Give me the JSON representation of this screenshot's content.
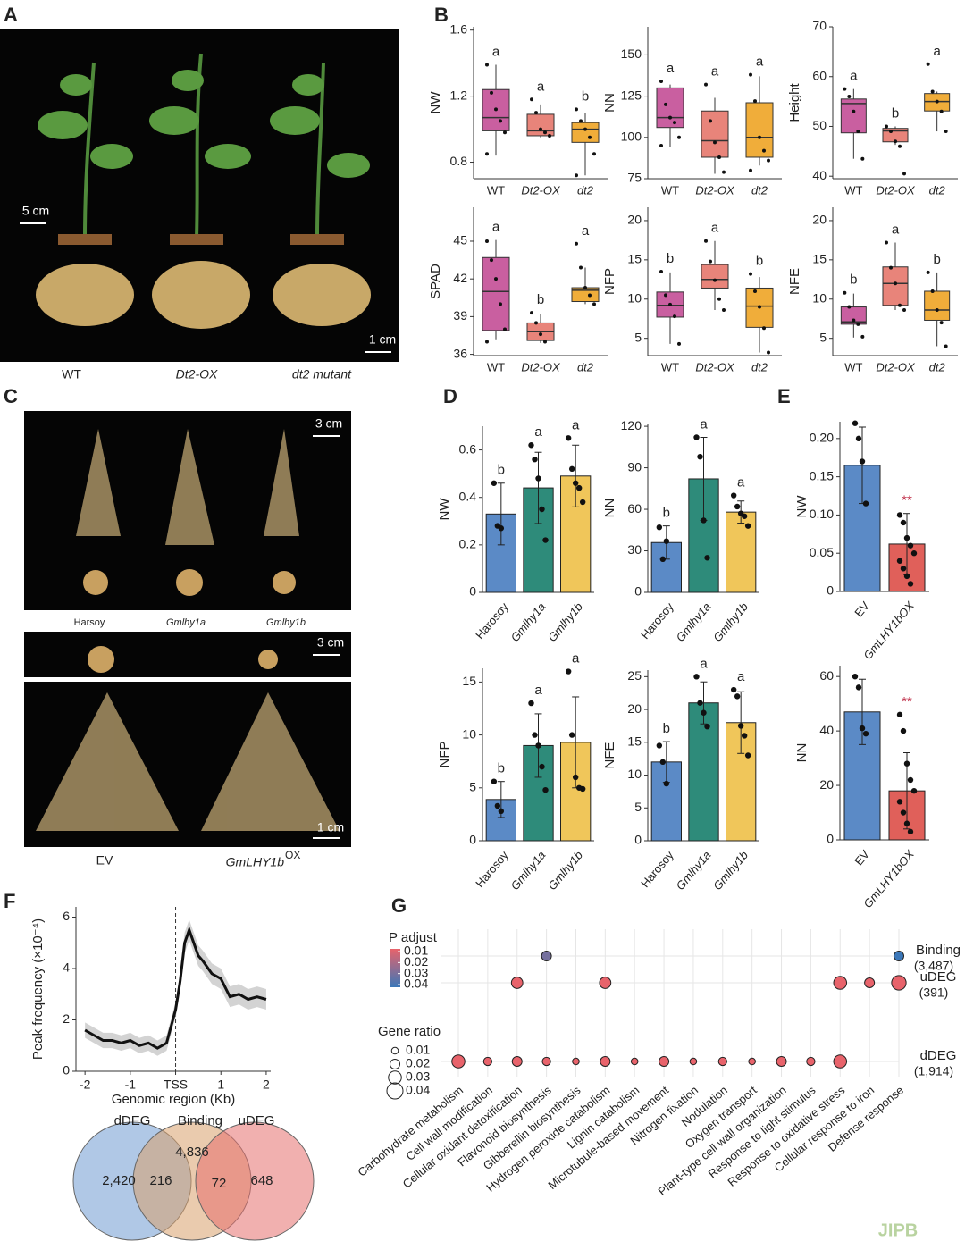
{
  "panel_labels": [
    "A",
    "B",
    "C",
    "D",
    "E",
    "F",
    "G"
  ],
  "photo_a": {
    "labels": [
      "WT",
      "Dt2-OX",
      "dt2 mutant"
    ],
    "scale_bars": [
      "5 cm",
      "1 cm"
    ]
  },
  "photo_c": {
    "labels": [
      "Harsoy",
      "Gmlhy1a",
      "Gmlhy1b"
    ],
    "scale_bars": [
      "3 cm",
      "3 cm",
      "1 cm"
    ],
    "labels_bottom": [
      "EV",
      "GmLHY1b",
      "OX"
    ]
  },
  "watermark": "JIPB",
  "chart_data": [
    {
      "type": "box",
      "ylabel": "NW",
      "categories": [
        "WT",
        "Dt2-OX",
        "dt2"
      ],
      "colors": [
        "#c95fa0",
        "#e8847a",
        "#f0ad3a"
      ],
      "min": [
        0.84,
        0.95,
        0.72
      ],
      "q1": [
        0.99,
        0.96,
        0.92
      ],
      "median": [
        1.07,
        0.99,
        1.0
      ],
      "q3": [
        1.24,
        1.09,
        1.04
      ],
      "max": [
        1.39,
        1.15,
        1.1
      ],
      "points": [
        [
          1.39,
          1.22,
          1.12,
          1.05,
          0.98,
          0.85
        ],
        [
          1.18,
          1.1,
          1.0,
          0.98,
          0.96
        ],
        [
          1.12,
          1.05,
          1.0,
          0.95,
          0.85,
          0.72
        ]
      ],
      "letters": [
        "a",
        "a",
        "b"
      ],
      "ylim": [
        0.7,
        1.62
      ],
      "yticks": [
        0.8,
        1.2,
        1.6
      ]
    },
    {
      "type": "box",
      "ylabel": "NN",
      "categories": [
        "WT",
        "Dt2-OX",
        "dt2"
      ],
      "colors": [
        "#c95fa0",
        "#e8847a",
        "#f0ad3a"
      ],
      "min": [
        94,
        78,
        83
      ],
      "q1": [
        106,
        88,
        88
      ],
      "median": [
        112,
        98,
        100
      ],
      "q3": [
        130,
        116,
        121
      ],
      "max": [
        132,
        124,
        137
      ],
      "points": [
        [
          134,
          120,
          112,
          109,
          100,
          95
        ],
        [
          132,
          110,
          97,
          88,
          79
        ],
        [
          138,
          122,
          100,
          92,
          86,
          80
        ]
      ],
      "letters": [
        "a",
        "a",
        "a"
      ],
      "ylim": [
        75,
        167
      ],
      "yticks": [
        75,
        100,
        125,
        150
      ]
    },
    {
      "type": "box",
      "ylabel": "Height",
      "categories": [
        "WT",
        "Dt2-OX",
        "dt2"
      ],
      "colors": [
        "#c95fa0",
        "#e8847a",
        "#f0ad3a"
      ],
      "min": [
        43.5,
        46.3,
        49
      ],
      "q1": [
        48.7,
        46.9,
        53.1
      ],
      "median": [
        54.6,
        49.1,
        55
      ],
      "q3": [
        55.5,
        49.6,
        56.6
      ],
      "max": [
        57.5,
        50,
        57
      ],
      "points": [
        [
          57.5,
          56,
          53,
          49,
          43.5
        ],
        [
          50,
          49,
          47,
          46,
          40.5
        ],
        [
          62.5,
          57,
          55,
          53,
          49
        ]
      ],
      "letters": [
        "a",
        "b",
        "a"
      ],
      "ylim": [
        39.5,
        70
      ],
      "yticks": [
        40,
        50,
        60,
        70
      ]
    },
    {
      "type": "box",
      "ylabel": "SPAD",
      "categories": [
        "WT",
        "Dt2-OX",
        "dt2"
      ],
      "colors": [
        "#c95fa0",
        "#e8847a",
        "#f0ad3a"
      ],
      "min": [
        37.2,
        36.9,
        40
      ],
      "q1": [
        37.9,
        37.1,
        40.2
      ],
      "median": [
        41,
        37.8,
        41.1
      ],
      "q3": [
        43.7,
        38.5,
        41.3
      ],
      "max": [
        45.1,
        39.2,
        42.9
      ],
      "points": [
        [
          45,
          43.5,
          42,
          40,
          38,
          37
        ],
        [
          39.3,
          38.5,
          37.6,
          37
        ],
        [
          44.8,
          42.9,
          41.3,
          40.7,
          40
        ]
      ],
      "letters": [
        "a",
        "b",
        "a"
      ],
      "ylim": [
        35.9,
        47.7
      ],
      "yticks": [
        36,
        39,
        42,
        45
      ]
    },
    {
      "type": "box",
      "ylabel": "NFP",
      "categories": [
        "WT",
        "Dt2-OX",
        "dt2"
      ],
      "colors": [
        "#c95fa0",
        "#e8847a",
        "#f0ad3a"
      ],
      "min": [
        4.3,
        8.6,
        3.2
      ],
      "q1": [
        7.7,
        11.4,
        6.4
      ],
      "median": [
        9.2,
        12.5,
        9.1
      ],
      "q3": [
        10.9,
        14.4,
        11.4
      ],
      "max": [
        13.4,
        17.4,
        12.8
      ],
      "points": [
        [
          13.5,
          10.5,
          9.3,
          7.8,
          4.3
        ],
        [
          17.4,
          14.8,
          12.4,
          10,
          8.6
        ],
        [
          13.2,
          11,
          9,
          6.3,
          3.2
        ]
      ],
      "letters": [
        "b",
        "a",
        "b"
      ],
      "ylim": [
        2.8,
        21.7
      ],
      "yticks": [
        5,
        10,
        15,
        20
      ]
    },
    {
      "type": "box",
      "ylabel": "NFE",
      "categories": [
        "WT",
        "Dt2-OX",
        "dt2"
      ],
      "colors": [
        "#c95fa0",
        "#e8847a",
        "#f0ad3a"
      ],
      "min": [
        5.1,
        8.6,
        4
      ],
      "q1": [
        6.8,
        9.2,
        7.3
      ],
      "median": [
        7.1,
        12,
        8.6
      ],
      "q3": [
        9,
        14.1,
        11
      ],
      "max": [
        10.7,
        17.2,
        13.4
      ],
      "points": [
        [
          10.8,
          9,
          7.3,
          6.8,
          5.2
        ],
        [
          17.2,
          14,
          12,
          9.2,
          8.6
        ],
        [
          13.4,
          11,
          8.6,
          7,
          4
        ]
      ],
      "letters": [
        "b",
        "a",
        "b"
      ],
      "ylim": [
        2.8,
        21.7
      ],
      "yticks": [
        5,
        10,
        15,
        20
      ]
    },
    {
      "type": "bar",
      "ylabel": "NW",
      "categories": [
        "Harosoy",
        "Gmlhy1a",
        "Gmlhy1b"
      ],
      "colors": [
        "#5b8ac6",
        "#2e8b7a",
        "#f0c65a"
      ],
      "values": [
        0.33,
        0.44,
        0.49
      ],
      "errors": [
        0.13,
        0.15,
        0.13
      ],
      "points": [
        [
          0.46,
          0.28,
          0.27
        ],
        [
          0.62,
          0.56,
          0.48,
          0.35,
          0.22
        ],
        [
          0.65,
          0.52,
          0.46,
          0.44,
          0.38
        ]
      ],
      "letters": [
        "b",
        "a",
        "a"
      ],
      "ylim": [
        0,
        0.7
      ],
      "yticks": [
        0,
        0.2,
        0.4,
        0.6
      ]
    },
    {
      "type": "bar",
      "ylabel": "NN",
      "categories": [
        "Harosoy",
        "Gmlhy1a",
        "Gmlhy1b"
      ],
      "colors": [
        "#5b8ac6",
        "#2e8b7a",
        "#f0c65a"
      ],
      "values": [
        36,
        82,
        58
      ],
      "errors": [
        12,
        30,
        8
      ],
      "points": [
        [
          47,
          24,
          37
        ],
        [
          112,
          98,
          52,
          25
        ],
        [
          70,
          62,
          57,
          55,
          48
        ]
      ],
      "letters": [
        "b",
        "a",
        "a"
      ],
      "ylim": [
        0,
        122
      ],
      "yticks": [
        0,
        30,
        60,
        90,
        120
      ]
    },
    {
      "type": "bar",
      "ylabel": "NFP",
      "categories": [
        "Harosoy",
        "Gmlhy1a",
        "Gmlhy1b"
      ],
      "colors": [
        "#5b8ac6",
        "#2e8b7a",
        "#f0c65a"
      ],
      "values": [
        3.9,
        9,
        9.3
      ],
      "errors": [
        1.7,
        3,
        4.3
      ],
      "points": [
        [
          5.6,
          3.3,
          2.8
        ],
        [
          13,
          10,
          9,
          7,
          4.8
        ],
        [
          16,
          10,
          6,
          5,
          4.9
        ]
      ],
      "letters": [
        "b",
        "a",
        "a"
      ],
      "ylim": [
        0,
        16.3
      ],
      "yticks": [
        0,
        5,
        10,
        15
      ]
    },
    {
      "type": "bar",
      "ylabel": "NFE",
      "categories": [
        "Harosoy",
        "Gmlhy1a",
        "Gmlhy1b"
      ],
      "colors": [
        "#5b8ac6",
        "#2e8b7a",
        "#f0c65a"
      ],
      "values": [
        12,
        21,
        18
      ],
      "errors": [
        3.1,
        3.2,
        4.7
      ],
      "points": [
        [
          14.5,
          12,
          8.7
        ],
        [
          25,
          21,
          19.5,
          17.4
        ],
        [
          23,
          22,
          17.5,
          16,
          13
        ]
      ],
      "letters": [
        "b",
        "a",
        "a"
      ],
      "ylim": [
        0,
        26
      ],
      "yticks": [
        0,
        5,
        10,
        15,
        20,
        25
      ]
    },
    {
      "type": "bar",
      "ylabel": "NW",
      "categories": [
        "EV",
        "GmLHY1bOX"
      ],
      "colors": [
        "#5b8ac6",
        "#e0605a"
      ],
      "values": [
        0.165,
        0.062
      ],
      "errors": [
        0.05,
        0.04
      ],
      "points": [
        [
          0.22,
          0.2,
          0.17,
          0.115
        ],
        [
          0.1,
          0.09,
          0.07,
          0.06,
          0.05,
          0.04,
          0.03,
          0.02,
          0.01
        ]
      ],
      "letters": [
        null,
        "**"
      ],
      "letter_color": "#c0304a",
      "ylim": [
        0,
        0.222
      ],
      "yticks": [
        0,
        0.05,
        {
          "value": 0.1,
          "label": "0.10"
        },
        0.15,
        {
          "value": 0.2,
          "label": "0.20"
        }
      ]
    },
    {
      "type": "bar",
      "ylabel": "NN",
      "categories": [
        "EV",
        "GmLHY1bOX"
      ],
      "colors": [
        "#5b8ac6",
        "#e0605a"
      ],
      "values": [
        47,
        18
      ],
      "errors": [
        12,
        14
      ],
      "points": [
        [
          60,
          56,
          41,
          39
        ],
        [
          46,
          40,
          28,
          22,
          18,
          14,
          10,
          6,
          3
        ]
      ],
      "letters": [
        null,
        "**"
      ],
      "letter_color": "#c0304a",
      "ylim": [
        0,
        64
      ],
      "yticks": [
        0,
        20,
        40,
        60
      ]
    },
    {
      "type": "line",
      "ylabel": "Peak frequency (×10⁻⁴)",
      "xlabel": "Genomic region (Kb)",
      "color": "#111111",
      "band_color": "#c8c8c8",
      "x": [
        -2,
        -1.8,
        -1.6,
        -1.4,
        -1.2,
        -1,
        -0.8,
        -0.6,
        -0.4,
        -0.2,
        0,
        0.1,
        0.2,
        0.3,
        0.4,
        0.5,
        0.6,
        0.8,
        1,
        1.2,
        1.4,
        1.6,
        1.8,
        2
      ],
      "values": [
        1.6,
        1.4,
        1.2,
        1.2,
        1.1,
        1.2,
        1.0,
        1.1,
        0.9,
        1.1,
        2.4,
        3.5,
        5.0,
        5.5,
        5.0,
        4.5,
        4.3,
        3.8,
        3.6,
        2.9,
        3.0,
        2.8,
        2.9,
        2.8
      ],
      "lower": [
        1.3,
        1.1,
        0.9,
        0.9,
        0.8,
        0.9,
        0.7,
        0.8,
        0.6,
        0.8,
        2.1,
        3.1,
        4.6,
        5.1,
        4.6,
        4.1,
        3.9,
        3.4,
        3.2,
        2.5,
        2.6,
        2.4,
        2.5,
        2.4
      ],
      "upper": [
        1.9,
        1.7,
        1.5,
        1.5,
        1.4,
        1.5,
        1.3,
        1.4,
        1.2,
        1.4,
        2.7,
        3.9,
        5.4,
        5.9,
        5.4,
        4.9,
        4.7,
        4.2,
        4.0,
        3.3,
        3.4,
        3.2,
        3.3,
        3.2
      ],
      "xlim": [
        -2.2,
        2.1
      ],
      "xticks": [
        -2,
        -1,
        {
          "value": 0,
          "label": "TSS"
        },
        1,
        2
      ],
      "ylim": [
        0,
        6.4
      ],
      "yticks": [
        0,
        2,
        4,
        6
      ]
    },
    {
      "type": "venn",
      "sets": [
        "dDEG",
        "Binding",
        "uDEG"
      ],
      "colors": [
        "#6f9bd1",
        "#d9a06b",
        "#e6706e"
      ],
      "regions": [
        {
          "value": 2420,
          "label": "2,420"
        },
        216,
        {
          "value": 4836,
          "label": "4,836"
        },
        72,
        648
      ]
    },
    {
      "type": "dot",
      "categories": [
        "Carbohydrate metabolism",
        "Cell wall modification",
        "Cellular oxidant detoxification",
        "Flavonoid biosynthesis",
        "Gibberellin biosynthesis",
        "Hydrogen peroxide catabolism",
        "Lignin catabolism",
        "Microtubule-based movement",
        "Nitrogen fixation",
        "Nodulation",
        "Oxygen transport",
        "Plant-type cell wall organization",
        "Response to light stimulus",
        "Response to oxidative stress",
        "Cellular response to iron",
        "Defense response"
      ],
      "series": [
        {
          "name": "Binding",
          "count": {
            "value": 3487,
            "label": "(3,487)"
          },
          "gene_ratio": [
            null,
            null,
            null,
            0.02,
            null,
            null,
            null,
            null,
            null,
            null,
            null,
            null,
            null,
            null,
            null,
            0.02
          ],
          "p_adjust": [
            null,
            null,
            null,
            0.03,
            null,
            null,
            null,
            null,
            null,
            null,
            null,
            null,
            null,
            null,
            null,
            0.04
          ]
        },
        {
          "name": "uDEG",
          "count": {
            "value": 391,
            "label": "(391)"
          },
          "gene_ratio": [
            null,
            null,
            0.025,
            null,
            null,
            0.025,
            null,
            null,
            null,
            null,
            null,
            null,
            null,
            0.03,
            0.02,
            0.035
          ],
          "p_adjust": [
            null,
            null,
            0.01,
            null,
            null,
            0.01,
            null,
            null,
            null,
            null,
            null,
            null,
            null,
            0.01,
            0.01,
            0.01
          ]
        },
        {
          "name": "dDEG",
          "count": {
            "value": 1914,
            "label": "(1,914)"
          },
          "gene_ratio": [
            0.03,
            0.015,
            0.02,
            0.015,
            0.01,
            0.02,
            0.01,
            0.02,
            0.01,
            0.015,
            0.01,
            0.02,
            0.015,
            0.03,
            null,
            null
          ],
          "p_adjust": [
            0.01,
            0.01,
            0.01,
            0.01,
            0.01,
            0.01,
            0.01,
            0.01,
            0.01,
            0.01,
            0.01,
            0.01,
            0.01,
            0.01,
            null,
            null
          ]
        }
      ],
      "color_title": "P adjust",
      "size_title": "Gene ratio",
      "p_adjust_ticks": [
        0.01,
        0.02,
        0.03,
        0.04
      ],
      "gene_ratio_ticks": [
        0.01,
        0.02,
        0.03,
        0.04
      ],
      "color_range": [
        "#e8636b",
        "#3b77b8"
      ]
    }
  ]
}
